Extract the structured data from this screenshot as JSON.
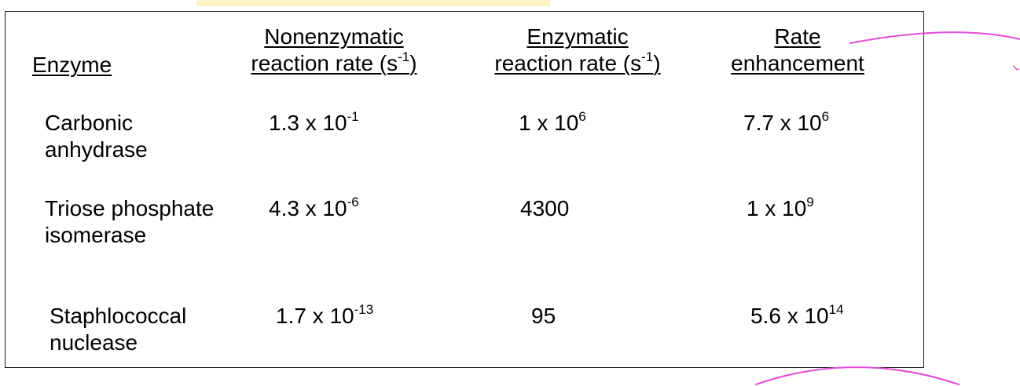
{
  "headers": {
    "enzyme": "Enzyme",
    "nonenzymatic": {
      "line1": "Nonenzymatic",
      "line2_pre": "reaction rate (s",
      "line2_sup": "-1",
      "line2_post": ")"
    },
    "enzymatic": {
      "line1": "Enzymatic",
      "line2_pre": "reaction rate (s",
      "line2_sup": "-1",
      "line2_post": ")"
    },
    "rate": {
      "line1": "Rate",
      "line2": "enhancement"
    }
  },
  "rows": [
    {
      "enzyme_line1": "Carbonic",
      "enzyme_line2": "anhydrase",
      "nonenzymatic": {
        "base": "1.3 x 10",
        "exp": "-1"
      },
      "enzymatic": {
        "base": "1 x 10",
        "exp": "6"
      },
      "rate": {
        "base": "7.7 x 10",
        "exp": "6"
      }
    },
    {
      "enzyme_line1": "Triose phosphate",
      "enzyme_line2": "isomerase",
      "nonenzymatic": {
        "base": "4.3 x 10",
        "exp": "-6"
      },
      "enzymatic": {
        "base": "4300",
        "exp": ""
      },
      "rate": {
        "base": "1 x 10",
        "exp": "9"
      }
    },
    {
      "enzyme_line1": "Staphlococcal",
      "enzyme_line2": "nuclease",
      "nonenzymatic": {
        "base": "1.7 x 10",
        "exp": "-13"
      },
      "enzymatic": {
        "base": "95",
        "exp": ""
      },
      "rate": {
        "base": "5.6 x 10",
        "exp": "14"
      }
    }
  ],
  "colors": {
    "annotation": "#e64bd8",
    "highlight": "#fdf3c4",
    "border": "#1a1a1a"
  }
}
